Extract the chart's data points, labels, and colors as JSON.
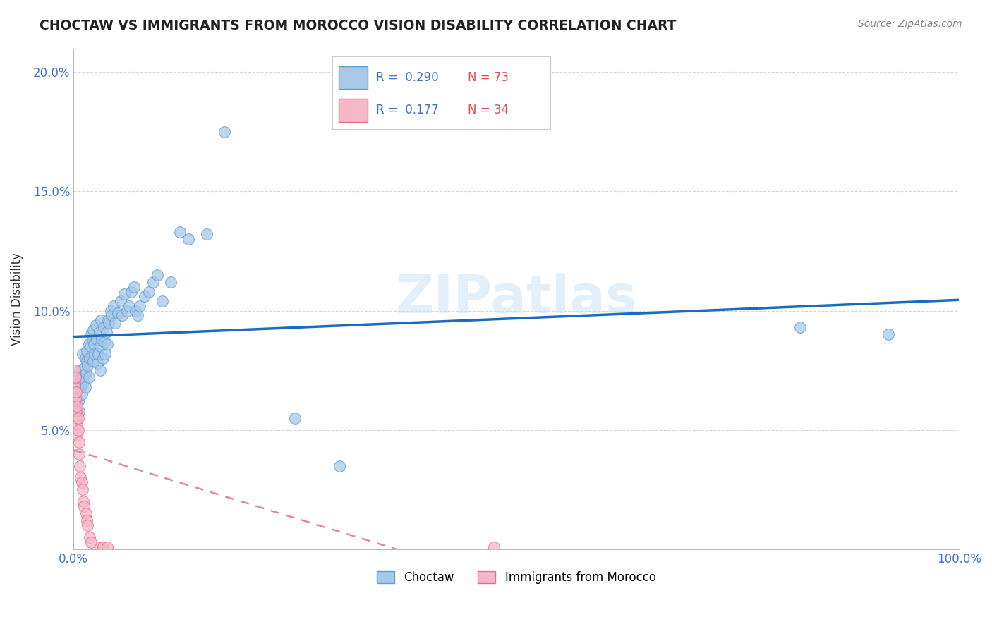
{
  "title": "CHOCTAW VS IMMIGRANTS FROM MOROCCO VISION DISABILITY CORRELATION CHART",
  "source": "Source: ZipAtlas.com",
  "ylabel": "Vision Disability",
  "xlabel": "",
  "xlim": [
    0.0,
    1.0
  ],
  "ylim": [
    0.0,
    0.21
  ],
  "yticks": [
    0.0,
    0.05,
    0.1,
    0.15,
    0.2
  ],
  "ytick_labels": [
    "",
    "5.0%",
    "10.0%",
    "15.0%",
    "20.0%"
  ],
  "xticks": [
    0.0,
    0.1,
    0.2,
    0.3,
    0.4,
    0.5,
    0.6,
    0.7,
    0.8,
    0.9,
    1.0
  ],
  "xtick_labels": [
    "0.0%",
    "",
    "",
    "",
    "",
    "",
    "",
    "",
    "",
    "",
    "100.0%"
  ],
  "choctaw_color": "#a8c8e8",
  "choctaw_edge_color": "#5a9fd4",
  "morocco_color": "#f4b8c8",
  "morocco_edge_color": "#e07090",
  "choctaw_line_color": "#1a6bbf",
  "morocco_line_color": "#e088a0",
  "r_choctaw": "0.290",
  "n_choctaw": "73",
  "r_morocco": "0.177",
  "n_morocco": "34",
  "watermark": "ZIPatlas",
  "background_color": "#ffffff",
  "grid_color": "#cccccc",
  "choctaw_x": [
    0.003,
    0.005,
    0.006,
    0.007,
    0.008,
    0.008,
    0.009,
    0.01,
    0.01,
    0.011,
    0.012,
    0.013,
    0.013,
    0.014,
    0.015,
    0.015,
    0.016,
    0.017,
    0.017,
    0.018,
    0.019,
    0.02,
    0.021,
    0.022,
    0.022,
    0.023,
    0.024,
    0.025,
    0.026,
    0.027,
    0.028,
    0.029,
    0.03,
    0.03,
    0.031,
    0.032,
    0.033,
    0.034,
    0.035,
    0.036,
    0.037,
    0.038,
    0.039,
    0.04,
    0.042,
    0.043,
    0.045,
    0.047,
    0.05,
    0.053,
    0.055,
    0.057,
    0.06,
    0.063,
    0.065,
    0.068,
    0.07,
    0.072,
    0.075,
    0.08,
    0.085,
    0.09,
    0.095,
    0.1,
    0.11,
    0.12,
    0.13,
    0.15,
    0.17,
    0.25,
    0.3,
    0.82,
    0.92
  ],
  "choctaw_y": [
    0.072,
    0.062,
    0.058,
    0.075,
    0.068,
    0.071,
    0.065,
    0.073,
    0.082,
    0.07,
    0.076,
    0.08,
    0.068,
    0.074,
    0.079,
    0.083,
    0.077,
    0.072,
    0.086,
    0.08,
    0.085,
    0.09,
    0.088,
    0.079,
    0.092,
    0.086,
    0.082,
    0.094,
    0.088,
    0.078,
    0.082,
    0.091,
    0.075,
    0.085,
    0.096,
    0.088,
    0.08,
    0.093,
    0.087,
    0.082,
    0.091,
    0.086,
    0.096,
    0.095,
    0.1,
    0.098,
    0.102,
    0.095,
    0.099,
    0.104,
    0.098,
    0.107,
    0.1,
    0.102,
    0.108,
    0.11,
    0.1,
    0.098,
    0.102,
    0.106,
    0.108,
    0.112,
    0.115,
    0.104,
    0.112,
    0.133,
    0.13,
    0.132,
    0.175,
    0.055,
    0.035,
    0.093,
    0.09
  ],
  "morocco_x": [
    0.001,
    0.001,
    0.001,
    0.001,
    0.001,
    0.002,
    0.002,
    0.002,
    0.002,
    0.003,
    0.003,
    0.003,
    0.004,
    0.004,
    0.004,
    0.005,
    0.005,
    0.006,
    0.006,
    0.007,
    0.008,
    0.009,
    0.01,
    0.011,
    0.012,
    0.014,
    0.015,
    0.016,
    0.018,
    0.02,
    0.03,
    0.033,
    0.475,
    0.038
  ],
  "morocco_y": [
    0.07,
    0.065,
    0.075,
    0.068,
    0.062,
    0.072,
    0.06,
    0.058,
    0.063,
    0.066,
    0.055,
    0.058,
    0.06,
    0.052,
    0.048,
    0.055,
    0.05,
    0.045,
    0.04,
    0.035,
    0.03,
    0.028,
    0.025,
    0.02,
    0.018,
    0.015,
    0.012,
    0.01,
    0.005,
    0.003,
    0.001,
    0.001,
    0.001,
    0.001
  ],
  "legend_r_color": "#4472c4",
  "legend_n_color": "#e05050",
  "title_color": "#222222",
  "source_color": "#888888",
  "axis_label_color": "#333333",
  "tick_color": "#4472c4"
}
